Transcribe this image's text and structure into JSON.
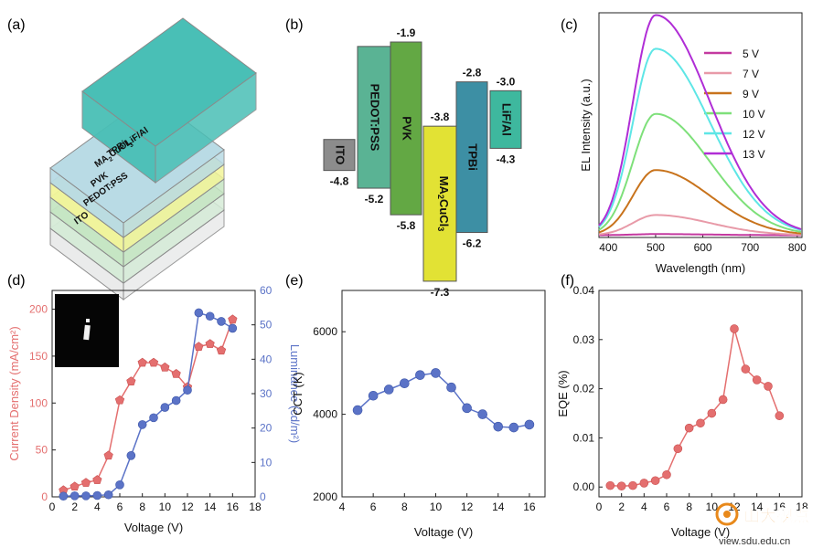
{
  "panel_labels": [
    "(a)",
    "(b)",
    "(c)",
    "(d)",
    "(e)",
    "(f)"
  ],
  "device_stack": {
    "layers": [
      {
        "label": "LiF/Al",
        "color": "#49bfb6"
      },
      {
        "label": "TPBi",
        "color": "#b9dbe5"
      },
      {
        "label": "MA2CuCl3",
        "color": "#f3f59a"
      },
      {
        "label": "PVK",
        "color": "#c6e6c3"
      },
      {
        "label": "PEDOT:PSS",
        "color": "#d6ecd8"
      },
      {
        "label": "ITO",
        "color": "#e9eaea"
      }
    ]
  },
  "energy_diagram": {
    "layers": [
      {
        "label": "ITO",
        "top": "",
        "bottom": "-4.8",
        "top_e": -4.1,
        "bottom_e": -4.8,
        "color": "#8c8c8c"
      },
      {
        "label": "PEDOT:PSS",
        "top": "",
        "bottom": "-5.2",
        "top_e": -2.0,
        "bottom_e": -5.2,
        "color": "#5ab394"
      },
      {
        "label": "PVK",
        "top": "-1.9",
        "bottom": "-5.8",
        "top_e": -1.9,
        "bottom_e": -5.8,
        "color": "#63a844"
      },
      {
        "label": "MA2CuCl3",
        "top": "-3.8",
        "bottom": "-7.3",
        "top_e": -3.8,
        "bottom_e": -7.3,
        "color": "#e2e234"
      },
      {
        "label": "TPBi",
        "top": "-2.8",
        "bottom": "-6.2",
        "top_e": -2.8,
        "bottom_e": -6.2,
        "color": "#3d8fa4"
      },
      {
        "label": "LiF/Al",
        "top": "-3.0",
        "bottom": "-4.3",
        "top_e": -3.0,
        "bottom_e": -4.3,
        "color": "#3eb89e"
      }
    ]
  },
  "chart_data": [
    {
      "id": "c",
      "type": "line",
      "xlabel": "Wavelength (nm)",
      "ylabel": "EL Intensity (a.u.)",
      "xlim": [
        380,
        810
      ],
      "ylim": [
        0,
        1.0
      ],
      "xticks": [
        400,
        500,
        600,
        700,
        800
      ],
      "peak": 500,
      "series": [
        {
          "name": "5 V",
          "color": "#c43aa0",
          "amplitude": 0.005
        },
        {
          "name": "7 V",
          "color": "#e89aa8",
          "amplitude": 0.09
        },
        {
          "name": "9 V",
          "color": "#c8731c",
          "amplitude": 0.29
        },
        {
          "name": "10 V",
          "color": "#7ee07a",
          "amplitude": 0.54
        },
        {
          "name": "12 V",
          "color": "#5ee6e6",
          "amplitude": 0.83
        },
        {
          "name": "13 V",
          "color": "#b02dd6",
          "amplitude": 0.98
        }
      ]
    },
    {
      "id": "d",
      "type": "scatter",
      "xlabel": "Voltage (V)",
      "ylabel_left": "Current Density (mA/cm²)",
      "ylabel_right": "Luminance (cd/m²)",
      "xlim": [
        0,
        18
      ],
      "xticks": [
        0,
        2,
        4,
        6,
        8,
        10,
        12,
        14,
        16,
        18
      ],
      "ylim_left": [
        0,
        220
      ],
      "yticks_left": [
        0,
        50,
        100,
        150,
        200
      ],
      "ylim_right": [
        0,
        60
      ],
      "yticks_right": [
        0,
        10,
        20,
        30,
        40,
        50,
        60
      ],
      "series": [
        {
          "name": "Current Density",
          "axis": "left",
          "color": "#e46f6f",
          "x": [
            1,
            2,
            3,
            4,
            5,
            6,
            7,
            8,
            9,
            10,
            11,
            12,
            13,
            14,
            15,
            16
          ],
          "y": [
            7,
            11,
            15,
            18,
            44,
            103,
            123,
            143,
            143,
            138,
            131,
            117,
            160,
            163,
            156,
            189
          ]
        },
        {
          "name": "Luminance",
          "axis": "right",
          "color": "#5b73c7",
          "x": [
            1,
            2,
            3,
            4,
            5,
            6,
            7,
            8,
            9,
            10,
            11,
            12,
            13,
            14,
            15,
            16
          ],
          "y": [
            0.2,
            0.3,
            0.3,
            0.4,
            0.6,
            3.5,
            12,
            21,
            23,
            26,
            28,
            31,
            53.5,
            52.5,
            51,
            49
          ]
        }
      ]
    },
    {
      "id": "e",
      "type": "line",
      "xlabel": "Voltage (V)",
      "ylabel": "CCT (K)",
      "xlim": [
        4,
        17
      ],
      "xticks": [
        4,
        6,
        8,
        10,
        12,
        14,
        16
      ],
      "ylim": [
        2000,
        7000
      ],
      "yticks": [
        2000,
        4000,
        6000
      ],
      "color": "#5b73c7",
      "x": [
        5,
        6,
        7,
        8,
        9,
        10,
        11,
        12,
        13,
        14,
        15,
        16
      ],
      "y": [
        4100,
        4450,
        4600,
        4750,
        4950,
        5000,
        4650,
        4150,
        4000,
        3700,
        3680,
        3750
      ]
    },
    {
      "id": "f",
      "type": "line",
      "xlabel": "Voltage (V)",
      "ylabel": "EQE (%)",
      "xlim": [
        0,
        18
      ],
      "xticks": [
        0,
        2,
        4,
        6,
        8,
        10,
        12,
        14,
        16,
        18
      ],
      "ylim": [
        -0.002,
        0.04
      ],
      "yticks": [
        0.0,
        0.01,
        0.02,
        0.03,
        0.04
      ],
      "ytick_labels": [
        "0.00",
        "0.01",
        "0.02",
        "0.03",
        "0.04"
      ],
      "color": "#e46f6f",
      "x": [
        1,
        2,
        3,
        4,
        5,
        6,
        7,
        8,
        9,
        10,
        11,
        12,
        13,
        14,
        15,
        16
      ],
      "y": [
        0.0003,
        0.0002,
        0.0003,
        0.0008,
        0.0013,
        0.0025,
        0.0078,
        0.012,
        0.013,
        0.015,
        0.0178,
        0.0322,
        0.024,
        0.0218,
        0.0205,
        0.0145
      ]
    }
  ],
  "watermark": {
    "text": "山大视点",
    "sub": "view.sdu.edu.cn"
  }
}
